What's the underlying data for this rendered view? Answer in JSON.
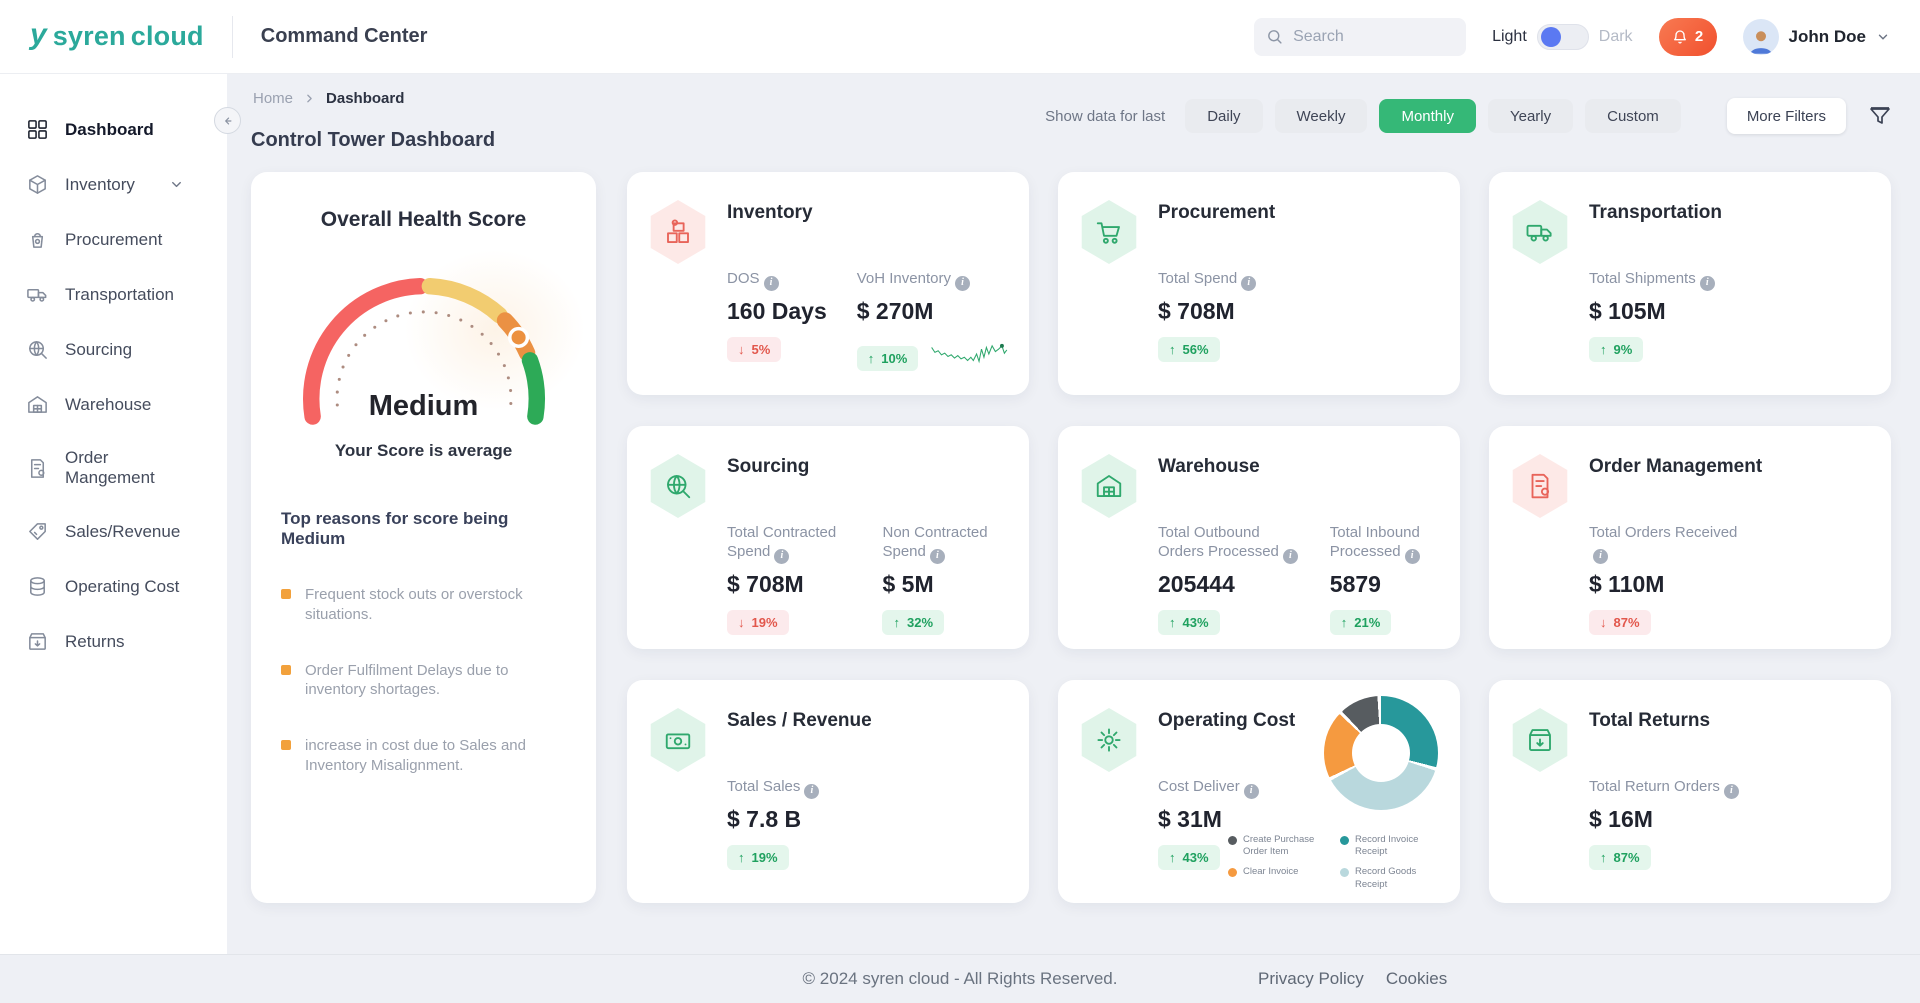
{
  "header": {
    "logo_first": "syren",
    "logo_second": "cloud",
    "app_title": "Command Center",
    "search_placeholder": "Search",
    "theme_light": "Light",
    "theme_dark": "Dark",
    "notifications_count": "2",
    "user_name": "John Doe"
  },
  "sidebar": {
    "items": [
      {
        "label": "Dashboard",
        "icon": "dashboard-icon",
        "active": true
      },
      {
        "label": "Inventory",
        "icon": "inventory-icon",
        "submenu": true
      },
      {
        "label": "Procurement",
        "icon": "procurement-icon"
      },
      {
        "label": "Transportation",
        "icon": "transportation-icon"
      },
      {
        "label": "Sourcing",
        "icon": "sourcing-icon"
      },
      {
        "label": "Warehouse",
        "icon": "warehouse-icon"
      },
      {
        "label": "Order Mangement",
        "icon": "order-management-icon"
      },
      {
        "label": "Sales/Revenue",
        "icon": "sales-revenue-icon"
      },
      {
        "label": "Operating Cost",
        "icon": "operating-cost-icon"
      },
      {
        "label": "Returns",
        "icon": "returns-icon"
      }
    ]
  },
  "breadcrumb": {
    "home": "Home",
    "current": "Dashboard"
  },
  "page": {
    "title": "Control Tower Dashboard"
  },
  "filters": {
    "label": "Show data for last",
    "options": [
      "Daily",
      "Weekly",
      "Monthly",
      "Yearly",
      "Custom"
    ],
    "active": "Monthly",
    "more_filters": "More Filters"
  },
  "health": {
    "title": "Overall Health Score",
    "status": "Medium",
    "subtitle": "Your Score is average",
    "reasons_title": "Top reasons for score being Medium",
    "reasons": [
      "Frequent stock outs or overstock situations.",
      "Order Fulfilment Delays due to inventory shortages.",
      "increase in cost due to Sales and Inventory Misalignment."
    ]
  },
  "cards": [
    {
      "title": "Inventory",
      "icon": "inventory-boxes-icon",
      "tint": "red",
      "metrics": [
        {
          "label": "DOS",
          "value": "160 Days",
          "delta": {
            "dir": "down",
            "text": "5%",
            "tone": "red"
          }
        },
        {
          "label": "VoH Inventory",
          "value": "$ 270M",
          "delta": {
            "dir": "up",
            "text": "10%",
            "tone": "green"
          },
          "sparkline": true
        }
      ]
    },
    {
      "title": "Procurement",
      "icon": "procurement-cart-icon",
      "tint": "green",
      "metrics": [
        {
          "label": "Total Spend",
          "value": "$ 708M",
          "delta": {
            "dir": "up",
            "text": "56%",
            "tone": "green"
          }
        }
      ]
    },
    {
      "title": "Transportation",
      "icon": "truck-icon",
      "tint": "green",
      "metrics": [
        {
          "label": "Total Shipments",
          "value": "$ 105M",
          "delta": {
            "dir": "up",
            "text": "9%",
            "tone": "green"
          }
        }
      ]
    },
    {
      "title": "Sourcing",
      "icon": "globe-search-icon",
      "tint": "green",
      "metrics": [
        {
          "label": "Total Contracted Spend",
          "value": "$ 708M",
          "delta": {
            "dir": "down",
            "text": "19%",
            "tone": "red"
          }
        },
        {
          "label": "Non Contracted Spend",
          "value": "$ 5M",
          "delta": {
            "dir": "up",
            "text": "32%",
            "tone": "green"
          }
        }
      ]
    },
    {
      "title": "Warehouse",
      "icon": "warehouse-icon",
      "tint": "green",
      "metrics": [
        {
          "label": "Total Outbound Orders Processed",
          "value": "205444",
          "delta": {
            "dir": "up",
            "text": "43%",
            "tone": "green"
          }
        },
        {
          "label": "Total Inbound Processed",
          "value": "5879",
          "delta": {
            "dir": "up",
            "text": "21%",
            "tone": "green"
          }
        }
      ]
    },
    {
      "title": "Order Management",
      "icon": "order-box-icon",
      "tint": "red",
      "metrics": [
        {
          "label": "Total Orders Received",
          "value": "$ 110M",
          "delta": {
            "dir": "down",
            "text": "87%",
            "tone": "red"
          }
        }
      ]
    },
    {
      "title": "Sales / Revenue",
      "icon": "sales-money-icon",
      "tint": "green",
      "metrics": [
        {
          "label": "Total Sales",
          "value": "$ 7.8 B",
          "delta": {
            "dir": "up",
            "text": "19%",
            "tone": "green"
          }
        }
      ]
    },
    {
      "title": "Operating Cost",
      "icon": "gear-icon",
      "tint": "green",
      "metrics": [
        {
          "label": "Cost Deliver",
          "value": "$ 31M",
          "delta": {
            "dir": "up",
            "text": "43%",
            "tone": "green"
          }
        }
      ],
      "donut": {
        "type": "pie",
        "segments": [
          {
            "label": "Record Invoice Receipt",
            "color": "#27989b",
            "value": 30
          },
          {
            "label": "Record Goods Receipt",
            "color": "#b9d8dd",
            "value": 38
          },
          {
            "label": "Clear Invoice",
            "color": "#f59a40",
            "value": 20
          },
          {
            "label": "Create Purchase Order Item",
            "color": "#575c60",
            "value": 12
          }
        ],
        "legend": [
          {
            "label": "Create Purchase Order Item",
            "color": "#575c60"
          },
          {
            "label": "Record Invoice Receipt",
            "color": "#27989b"
          },
          {
            "label": "Clear Invoice",
            "color": "#f59a40"
          },
          {
            "label": "Record Goods Receipt",
            "color": "#b9d8dd"
          }
        ]
      }
    },
    {
      "title": "Total Returns",
      "icon": "returns-icon",
      "tint": "green",
      "metrics": [
        {
          "label": "Total Return Orders",
          "value": "$ 16M",
          "delta": {
            "dir": "up",
            "text": "87%",
            "tone": "green"
          }
        }
      ]
    }
  ],
  "footer": {
    "copyright": "© 2024 syren cloud - All Rights Reserved.",
    "links": [
      "Privacy Policy",
      "Cookies"
    ]
  },
  "colors": {
    "brand_teal": "#2BA99B",
    "accent_green": "#35b877",
    "badge_green": "#1fa15f",
    "badge_red": "#e2574c",
    "gauge_red": "#f56462",
    "gauge_yellow": "#f2cc70",
    "gauge_orange": "#eb9143",
    "gauge_green": "#2daa57"
  }
}
